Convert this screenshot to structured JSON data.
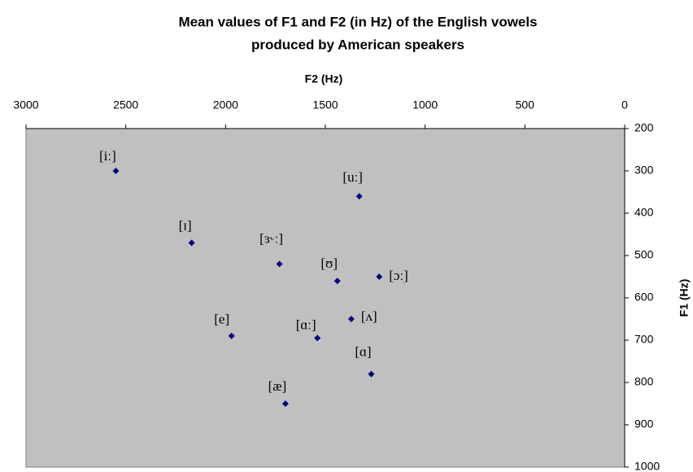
{
  "chart_data": {
    "type": "scatter",
    "title": [
      "Mean values of F1 and F2 (in Hz) of the English vowels",
      "produced by American speakers"
    ],
    "x_label": "F2 (Hz)",
    "y_label": "F1 (Hz)",
    "point_labels": [
      "[iː]",
      "[uː]",
      "[ɪ]",
      "[ɜ˞ː]",
      "[ʊ]",
      "[ɔː]",
      "[ʌ]",
      "[e]",
      "[ɑː]",
      "[ɑ]",
      "[æ]"
    ],
    "x": [
      2550,
      1330,
      2170,
      1730,
      1440,
      1230,
      1370,
      1970,
      1540,
      1270,
      1700
    ],
    "values": [
      300,
      360,
      470,
      520,
      560,
      550,
      650,
      690,
      695,
      780,
      850
    ],
    "color": "#000080",
    "background": "#c0c0c0",
    "xlim": [
      3000,
      0
    ],
    "xticks": [
      3000,
      2500,
      2000,
      1500,
      1000,
      500,
      0
    ],
    "ylim": [
      1000,
      200
    ],
    "yticks": [
      200,
      300,
      400,
      500,
      600,
      700,
      800,
      900,
      1000
    ],
    "x_axis_position": "top",
    "y_axis_position": "right"
  }
}
